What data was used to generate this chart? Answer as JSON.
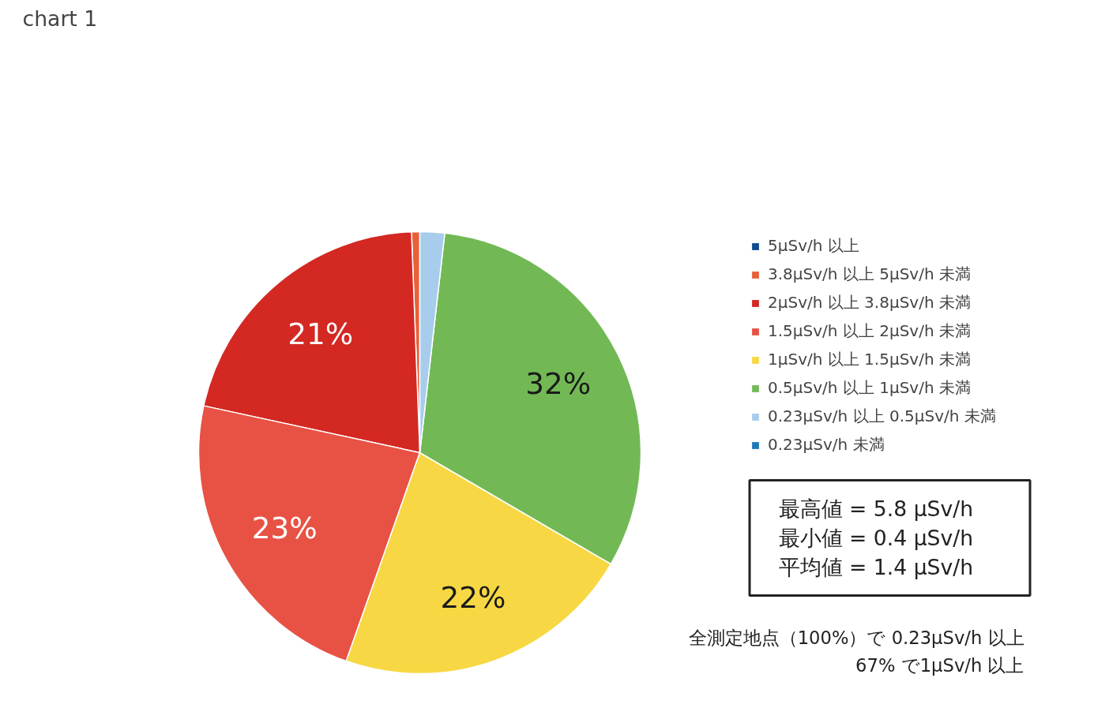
{
  "chart_data": {
    "type": "pie",
    "title": "chart 1",
    "categories": [
      "5μSv/h 以上",
      "3.8μSv/h 以上 5μSv/h 未満",
      "2μSv/h 以上 3.8μSv/h 未満",
      "1.5μSv/h 以上 2μSv/h 未満",
      "1μSv/h 以上 1.5μSv/h 未満",
      "0.5μSv/h 以上 1μSv/h 未満",
      "0.23μSv/h 以上 0.5μSv/h 未満",
      "0.23μSv/h 未満"
    ],
    "values": [
      0,
      0.6,
      21,
      23,
      22,
      31.6,
      1.8,
      0
    ],
    "value_labels": [
      null,
      null,
      "21%",
      "23%",
      "22%",
      "32%",
      null,
      null
    ],
    "colors": [
      "#0d4a8f",
      "#e8603a",
      "#d42823",
      "#e85244",
      "#f7d844",
      "#72b955",
      "#a8cdec",
      "#1f7bb5"
    ],
    "legend": "right",
    "annotations": [
      "最高値 = 5.8 μSv/h\n最小値 = 0.4 μSv/h\n平均値 = 1.4 μSv/h",
      "全測定地点（100%）で 0.23μSv/h 以上\n67% で1μSv/h 以上"
    ]
  }
}
